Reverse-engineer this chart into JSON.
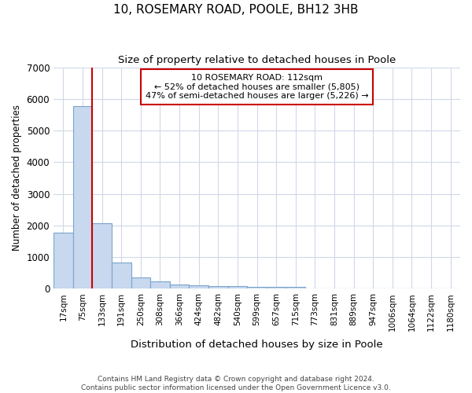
{
  "title": "10, ROSEMARY ROAD, POOLE, BH12 3HB",
  "subtitle": "Size of property relative to detached houses in Poole",
  "xlabel": "Distribution of detached houses by size in Poole",
  "ylabel": "Number of detached properties",
  "footer_line1": "Contains HM Land Registry data © Crown copyright and database right 2024.",
  "footer_line2": "Contains public sector information licensed under the Open Government Licence v3.0.",
  "bin_labels": [
    "17sqm",
    "75sqm",
    "133sqm",
    "191sqm",
    "250sqm",
    "308sqm",
    "366sqm",
    "424sqm",
    "482sqm",
    "540sqm",
    "599sqm",
    "657sqm",
    "715sqm",
    "773sqm",
    "831sqm",
    "889sqm",
    "947sqm",
    "1006sqm",
    "1064sqm",
    "1122sqm",
    "1180sqm"
  ],
  "bar_values": [
    1780,
    5780,
    2060,
    820,
    360,
    220,
    130,
    100,
    90,
    75,
    55,
    45,
    60,
    0,
    0,
    0,
    0,
    0,
    0,
    0,
    0
  ],
  "bar_color": "#c8d8ee",
  "bar_edge_color": "#7aa4cc",
  "bar_edge_width": 0.8,
  "background_color": "#ffffff",
  "plot_bg_color": "#ffffff",
  "grid_color": "#d0d8e8",
  "red_line_x": 1.5,
  "property_label": "10 ROSEMARY ROAD: 112sqm",
  "annotation_line1": "← 52% of detached houses are smaller (5,805)",
  "annotation_line2": "47% of semi-detached houses are larger (5,226) →",
  "annotation_box_color": "#ffffff",
  "annotation_box_edge_color": "#cc0000",
  "red_line_color": "#cc0000",
  "ylim": [
    0,
    7000
  ],
  "yticks": [
    0,
    1000,
    2000,
    3000,
    4000,
    5000,
    6000,
    7000
  ]
}
